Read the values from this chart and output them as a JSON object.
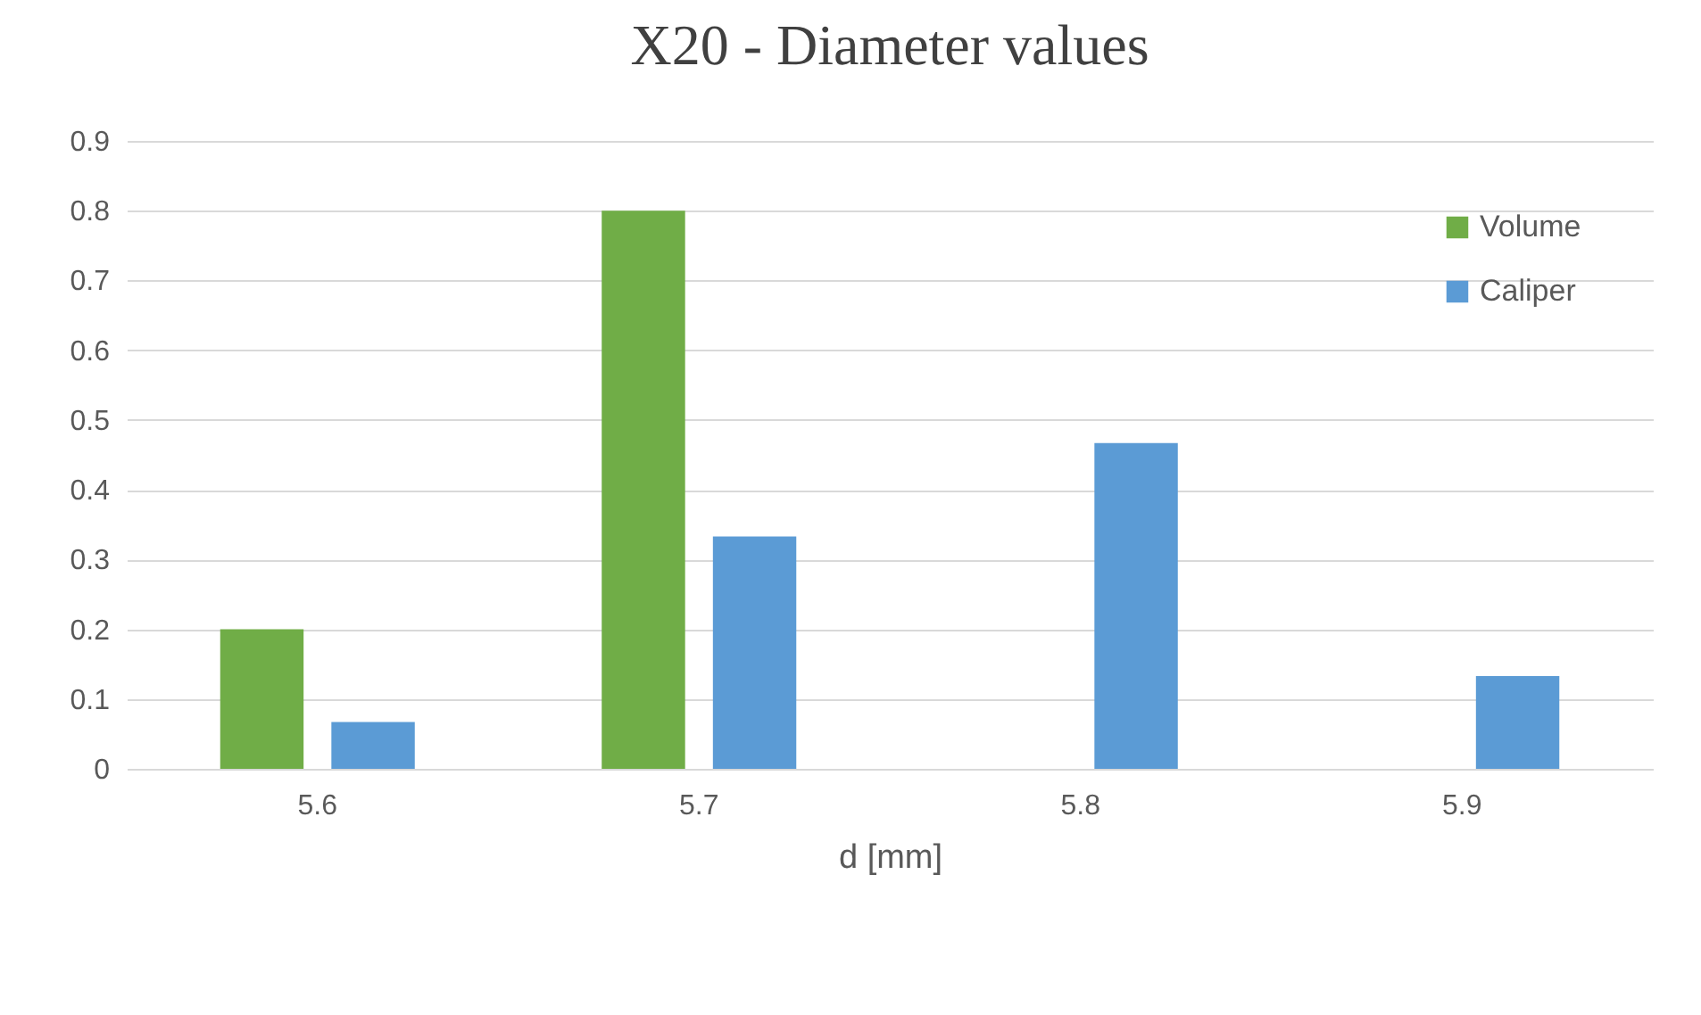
{
  "chart_data": {
    "type": "bar",
    "title": "X20 - Diameter values",
    "xlabel": "d [mm]",
    "categories": [
      "5.6",
      "5.7",
      "5.8",
      "5.9"
    ],
    "series": [
      {
        "name": "Volume",
        "color": "#70ad47",
        "values": [
          0.2,
          0.8,
          0,
          0
        ]
      },
      {
        "name": "Caliper",
        "color": "#5b9bd5",
        "values": [
          0.067,
          0.333,
          0.467,
          0.133
        ]
      }
    ],
    "ylim": [
      0,
      0.9
    ],
    "yticks": [
      0,
      0.1,
      0.2,
      0.3,
      0.4,
      0.5,
      0.6,
      0.7,
      0.8,
      0.9
    ],
    "grid": "y",
    "legend": "top right"
  }
}
